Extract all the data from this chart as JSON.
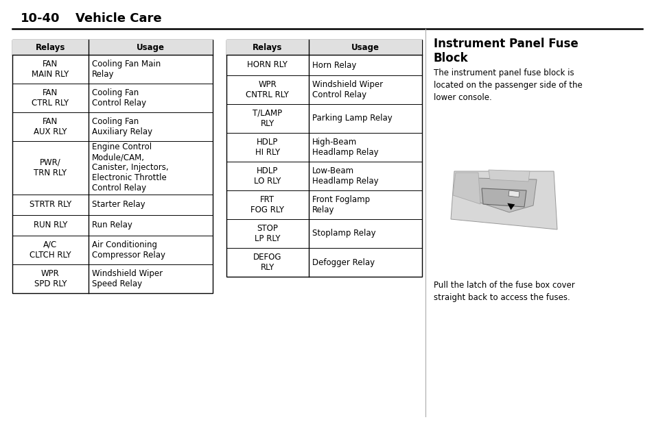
{
  "page_header_num": "10-40",
  "page_header_title": "Vehicle Care",
  "bg_color": "#ffffff",
  "text_color": "#000000",
  "table1_header": [
    "Relays",
    "Usage"
  ],
  "table1_rows": [
    [
      "FAN\nMAIN RLY",
      "Cooling Fan Main\nRelay"
    ],
    [
      "FAN\nCTRL RLY",
      "Cooling Fan\nControl Relay"
    ],
    [
      "FAN\nAUX RLY",
      "Cooling Fan\nAuxiliary Relay"
    ],
    [
      "PWR/\nTRN RLY",
      "Engine Control\nModule/CAM,\nCanister, Injectors,\nElectronic Throttle\nControl Relay"
    ],
    [
      "STRTR RLY",
      "Starter Relay"
    ],
    [
      "RUN RLY",
      "Run Relay"
    ],
    [
      "A/C\nCLTCH RLY",
      "Air Conditioning\nCompressor Relay"
    ],
    [
      "WPR\nSPD RLY",
      "Windshield Wiper\nSpeed Relay"
    ]
  ],
  "table2_header": [
    "Relays",
    "Usage"
  ],
  "table2_rows": [
    [
      "HORN RLY",
      "Horn Relay"
    ],
    [
      "WPR\nCNTRL RLY",
      "Windshield Wiper\nControl Relay"
    ],
    [
      "T/LAMP\nRLY",
      "Parking Lamp Relay"
    ],
    [
      "HDLP\nHI RLY",
      "High-Beam\nHeadlamp Relay"
    ],
    [
      "HDLP\nLO RLY",
      "Low-Beam\nHeadlamp Relay"
    ],
    [
      "FRT\nFOG RLY",
      "Front Foglamp\nRelay"
    ],
    [
      "STOP\nLP RLY",
      "Stoplamp Relay"
    ],
    [
      "DEFOG\nRLY",
      "Defogger Relay"
    ]
  ],
  "right_title_line1": "Instrument Panel Fuse",
  "right_title_line2": "Block",
  "right_para1": "The instrument panel fuse block is\nlocated on the passenger side of the\nlower console.",
  "right_para2": "Pull the latch of the fuse box cover\nstraight back to access the fuses."
}
